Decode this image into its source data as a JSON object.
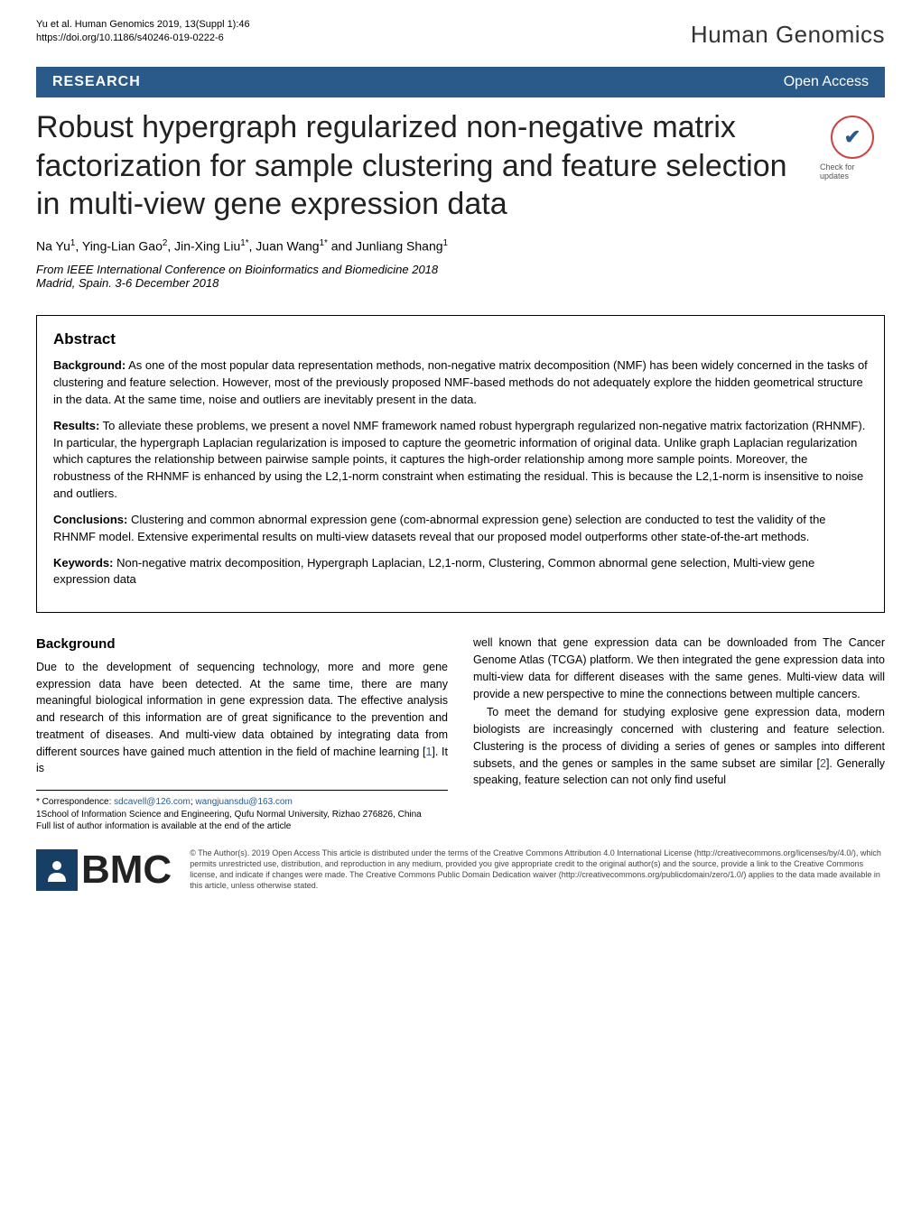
{
  "meta": {
    "citation": "Yu et al. Human Genomics 2019, 13(Suppl 1):46",
    "doi": "https://doi.org/10.1186/s40246-019-0222-6",
    "journal": "Human Genomics"
  },
  "bar": {
    "research": "RESEARCH",
    "open_access": "Open Access"
  },
  "title": "Robust hypergraph regularized non-negative matrix factorization for sample clustering and feature selection in multi-view gene expression data",
  "check_updates": "Check for updates",
  "authors_html": "Na Yu<sup>1</sup>, Ying-Lian Gao<sup>2</sup>, Jin-Xing Liu<sup>1*</sup>, Juan Wang<sup>1*</sup> and Junliang Shang<sup>1</sup>",
  "conference": {
    "line1": "From IEEE International Conference on Bioinformatics and Biomedicine 2018",
    "line2": "Madrid, Spain. 3-6 December 2018"
  },
  "abstract": {
    "heading": "Abstract",
    "background_label": "Background:",
    "background": " As one of the most popular data representation methods, non-negative matrix decomposition (NMF) has been widely concerned in the tasks of clustering and feature selection. However, most of the previously proposed NMF-based methods do not adequately explore the hidden geometrical structure in the data. At the same time, noise and outliers are inevitably present in the data.",
    "results_label": "Results:",
    "results": " To alleviate these problems, we present a novel NMF framework named robust hypergraph regularized non-negative matrix factorization (RHNMF). In particular, the hypergraph Laplacian regularization is imposed to capture the geometric information of original data. Unlike graph Laplacian regularization which captures the relationship between pairwise sample points, it captures the high-order relationship among more sample points. Moreover, the robustness of the RHNMF is enhanced by using the L2,1-norm constraint when estimating the residual. This is because the L2,1-norm is insensitive to noise and outliers.",
    "conclusions_label": "Conclusions:",
    "conclusions": " Clustering and common abnormal expression gene (com-abnormal expression gene) selection are conducted to test the validity of the RHNMF model. Extensive experimental results on multi-view datasets reveal that our proposed model outperforms other state-of-the-art methods.",
    "keywords_label": "Keywords:",
    "keywords": " Non-negative matrix decomposition, Hypergraph Laplacian, L2,1-norm, Clustering, Common abnormal gene selection, Multi-view gene expression data"
  },
  "body": {
    "background_heading": "Background",
    "col1_p1": "Due to the development of sequencing technology, more and more gene expression data have been detected. At the same time, there are many meaningful biological information in gene expression data. The effective analysis and research of this information are of great significance to the prevention and treatment of diseases. And multi-view data obtained by integrating data from different sources have gained much attention in the field of machine learning [1]. It is",
    "col2_p1": "well known that gene expression data can be downloaded from The Cancer Genome Atlas (TCGA) platform. We then integrated the gene expression data into multi-view data for different diseases with the same genes. Multi-view data will provide a new perspective to mine the connections between multiple cancers.",
    "col2_p2": "To meet the demand for studying explosive gene expression data, modern biologists are increasingly concerned with clustering and feature selection. Clustering is the process of dividing a series of genes or samples into different subsets, and the genes or samples in the same subset are similar [2]. Generally speaking, feature selection can not only find useful"
  },
  "correspondence": {
    "line1": "* Correspondence: sdcavell@126.com; wangjuansdu@163.com",
    "line2": "1School of Information Science and Engineering, Qufu Normal University, Rizhao 276826, China",
    "line3": "Full list of author information is available at the end of the article"
  },
  "footer": {
    "bmc": "BMC",
    "open_access_label": "Open Access",
    "license": "© The Author(s). 2019 Open Access This article is distributed under the terms of the Creative Commons Attribution 4.0 International License (http://creativecommons.org/licenses/by/4.0/), which permits unrestricted use, distribution, and reproduction in any medium, provided you give appropriate credit to the original author(s) and the source, provide a link to the Creative Commons license, and indicate if changes were made. The Creative Commons Public Domain Dedication waiver (http://creativecommons.org/publicdomain/zero/1.0/) applies to the data made available in this article, unless otherwise stated."
  },
  "colors": {
    "bar_bg": "#2a5a8a",
    "link": "#2a5a8a",
    "bmc_icon_bg": "#173e64",
    "check_border": "#c44"
  }
}
